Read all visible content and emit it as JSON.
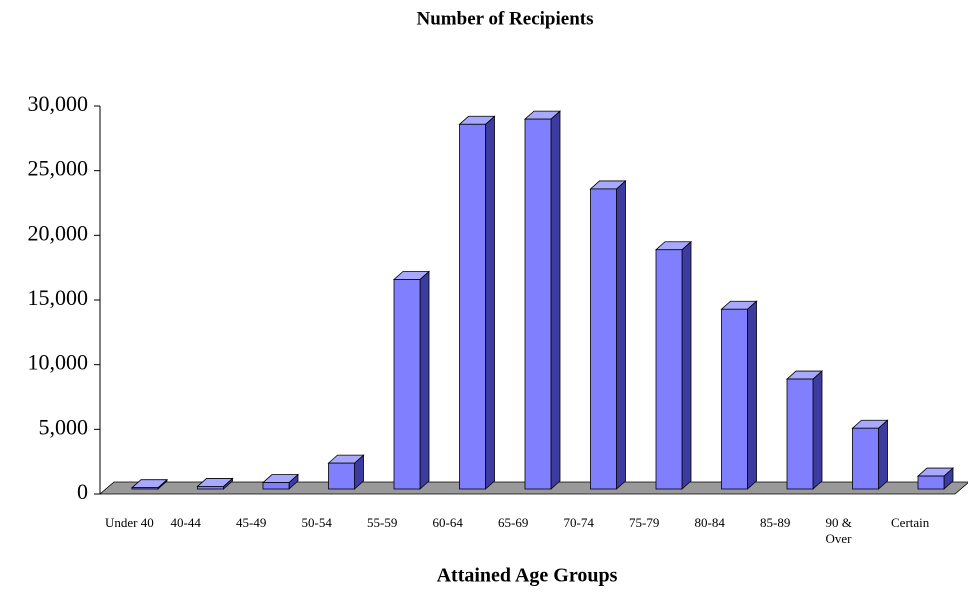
{
  "chart_data": {
    "type": "bar3d",
    "title": "Number of Recipients",
    "x_label": "Attained Age Groups",
    "categories": [
      "Under 40",
      "40-44",
      "45-49",
      "50-54",
      "55-59",
      "60-64",
      "65-69",
      "70-74",
      "75-79",
      "80-84",
      "85-89",
      "90 &\nOver",
      "Certain"
    ],
    "values": [
      100,
      200,
      500,
      2000,
      16200,
      28200,
      28600,
      23200,
      18500,
      13900,
      8500,
      4700,
      1000
    ],
    "color": "#8080ff",
    "ylim": [
      0,
      30000
    ],
    "yticks": [
      0,
      {
        "value": 5000,
        "label": "5,000"
      },
      {
        "value": 10000,
        "label": "10,000"
      },
      {
        "value": 15000,
        "label": "15,000"
      },
      {
        "value": 20000,
        "label": "20,000"
      },
      {
        "value": 25000,
        "label": "25,000"
      },
      {
        "value": 30000,
        "label": "30,000"
      }
    ]
  }
}
